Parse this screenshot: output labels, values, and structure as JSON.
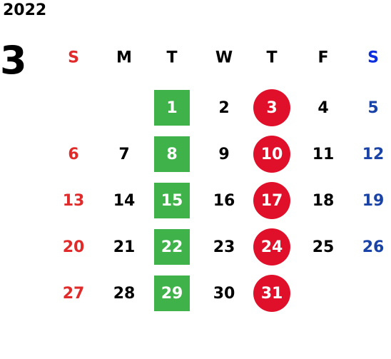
{
  "year": "2022",
  "month": "3",
  "colors": {
    "sunday": "#e12a2a",
    "saturday": "#1a43a8",
    "saturday_header": "#0a2ee0",
    "weekday": "#000000",
    "green": "#3fb34a",
    "circle": "#e0102a",
    "highlight_text": "#ffffff"
  },
  "weekdays": [
    {
      "label": "S",
      "type": "sunday"
    },
    {
      "label": "M",
      "type": "weekday"
    },
    {
      "label": "T",
      "type": "weekday"
    },
    {
      "label": "W",
      "type": "weekday"
    },
    {
      "label": "T",
      "type": "weekday"
    },
    {
      "label": "F",
      "type": "weekday"
    },
    {
      "label": "S",
      "type": "saturday"
    }
  ],
  "weeks": [
    [
      null,
      null,
      {
        "d": "1",
        "h": "green"
      },
      {
        "d": "2"
      },
      {
        "d": "3",
        "h": "circle"
      },
      {
        "d": "4"
      },
      {
        "d": "5"
      }
    ],
    [
      {
        "d": "6"
      },
      {
        "d": "7"
      },
      {
        "d": "8",
        "h": "green"
      },
      {
        "d": "9"
      },
      {
        "d": "10",
        "h": "circle"
      },
      {
        "d": "11"
      },
      {
        "d": "12"
      }
    ],
    [
      {
        "d": "13"
      },
      {
        "d": "14"
      },
      {
        "d": "15",
        "h": "green"
      },
      {
        "d": "16"
      },
      {
        "d": "17",
        "h": "circle"
      },
      {
        "d": "18"
      },
      {
        "d": "19"
      }
    ],
    [
      {
        "d": "20"
      },
      {
        "d": "21"
      },
      {
        "d": "22",
        "h": "green"
      },
      {
        "d": "23"
      },
      {
        "d": "24",
        "h": "circle"
      },
      {
        "d": "25"
      },
      {
        "d": "26"
      }
    ],
    [
      {
        "d": "27"
      },
      {
        "d": "28"
      },
      {
        "d": "29",
        "h": "green"
      },
      {
        "d": "30"
      },
      {
        "d": "31",
        "h": "circle"
      },
      null,
      null
    ]
  ]
}
